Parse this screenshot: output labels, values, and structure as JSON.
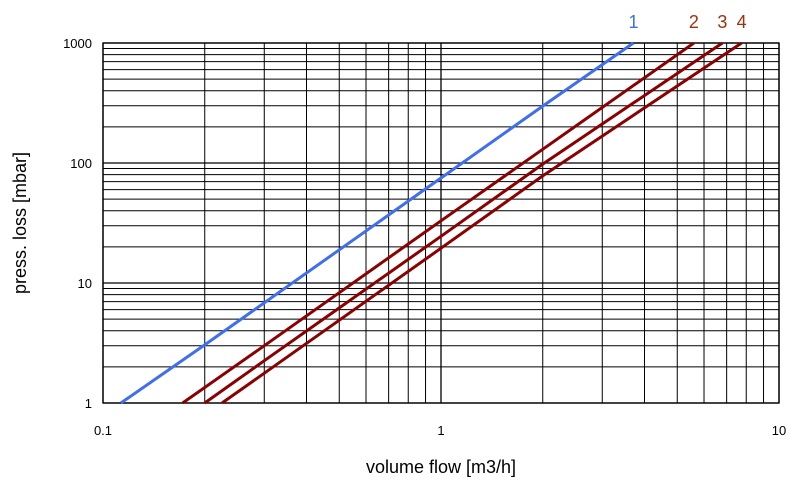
{
  "chart_data": {
    "type": "line",
    "title": "",
    "xlabel": "volume flow [m3/h]",
    "ylabel": "press. loss [mbar]",
    "x_scale": "log",
    "y_scale": "log",
    "xlim": [
      0.1,
      10
    ],
    "ylim": [
      1,
      1000
    ],
    "grid": true,
    "x_ticks": [
      {
        "value": 0.1,
        "label": "0.1"
      },
      {
        "value": 1,
        "label": "1"
      },
      {
        "value": 10,
        "label": "10"
      }
    ],
    "y_ticks": [
      {
        "value": 1,
        "label": "1"
      },
      {
        "value": 10,
        "label": "10"
      },
      {
        "value": 100,
        "label": "100"
      },
      {
        "value": 1000,
        "label": "1000"
      }
    ],
    "series": [
      {
        "name": "1",
        "color": "#3f6fef",
        "x": [
          0.113,
          0.2,
          0.5,
          1.0,
          2.0,
          3.71
        ],
        "y": [
          1,
          3.05,
          18.9,
          75,
          298,
          1000
        ]
      },
      {
        "name": "2",
        "color": "#8b0000",
        "x": [
          0.172,
          0.3,
          0.5,
          1.0,
          2.0,
          5.6
        ],
        "y": [
          1,
          3.0,
          8.3,
          33,
          130,
          1000
        ]
      },
      {
        "name": "3",
        "color": "#8b0000",
        "x": [
          0.2,
          0.3,
          0.5,
          1.0,
          2.0,
          6.8
        ],
        "y": [
          1,
          2.25,
          6.2,
          24.5,
          98,
          1000
        ]
      },
      {
        "name": "4",
        "color": "#8b0000",
        "x": [
          0.225,
          0.3,
          0.5,
          1.0,
          2.0,
          7.75
        ],
        "y": [
          1,
          1.77,
          4.9,
          19.5,
          78,
          1000
        ]
      }
    ]
  }
}
